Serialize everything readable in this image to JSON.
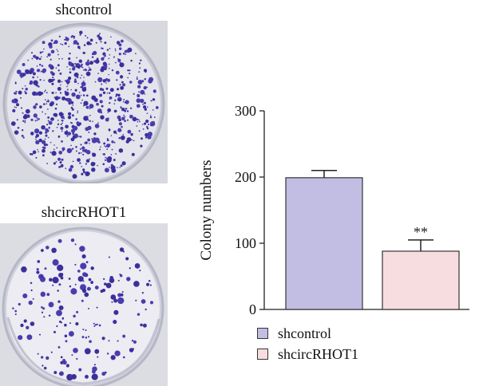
{
  "panels": {
    "top_label": "shcontrol",
    "bottom_label": "shcircRHOT1"
  },
  "chart_data": {
    "type": "bar",
    "categories": [
      "shcontrol",
      "shcircRHOT1"
    ],
    "values": [
      199,
      88
    ],
    "errors": [
      11,
      17
    ],
    "significance": [
      "",
      "**"
    ],
    "ylabel": "Colony numbers",
    "xlabel": "",
    "ylim": [
      0,
      300
    ],
    "yticks": [
      0,
      100,
      200,
      300
    ],
    "colors": [
      "#c2bde2",
      "#f7dde0"
    ],
    "legend": [
      {
        "label": "shcontrol",
        "color": "#c2bde2"
      },
      {
        "label": "shcircRHOT1",
        "color": "#f7dde0"
      }
    ],
    "legend_position": "bottom"
  }
}
